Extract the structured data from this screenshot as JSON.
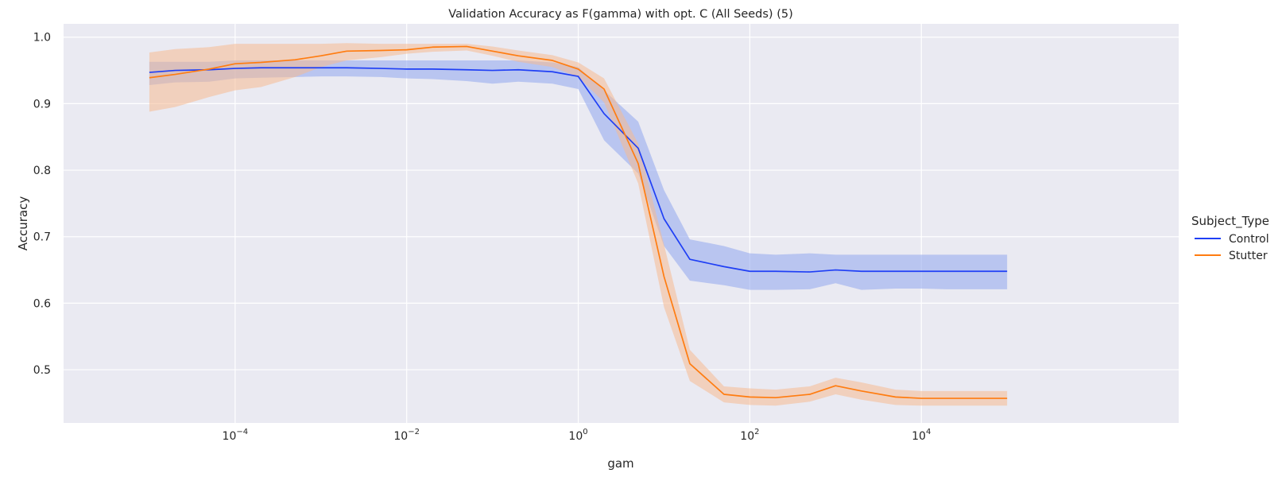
{
  "chart_data": {
    "type": "line",
    "title": "Validation Accuracy as F(gamma) with opt. C (All Seeds) (5)",
    "xlabel": "gam",
    "ylabel": "Accuracy",
    "xscale": "log",
    "xlim": [
      1e-06,
      10000000
    ],
    "ylim": [
      0.42,
      1.02
    ],
    "grid": true,
    "legend": {
      "title": "Subject_Type",
      "placement": "right"
    },
    "x_ticks": [
      {
        "base": "10",
        "exp": "−4",
        "value": 0.0001
      },
      {
        "base": "10",
        "exp": "−2",
        "value": 0.01
      },
      {
        "base": "10",
        "exp": "0",
        "value": 1
      },
      {
        "base": "10",
        "exp": "2",
        "value": 100
      },
      {
        "base": "10",
        "exp": "4",
        "value": 10000
      }
    ],
    "y_ticks": [
      {
        "label": "0.5",
        "value": 0.5
      },
      {
        "label": "0.6",
        "value": 0.6
      },
      {
        "label": "0.7",
        "value": 0.7
      },
      {
        "label": "0.8",
        "value": 0.8
      },
      {
        "label": "0.9",
        "value": 0.9
      },
      {
        "label": "1.0",
        "value": 1.0
      }
    ],
    "x": [
      1e-05,
      2e-05,
      5e-05,
      0.0001,
      0.0002,
      0.0005,
      0.001,
      0.002,
      0.005,
      0.01,
      0.02,
      0.05,
      0.1,
      0.2,
      0.5,
      1,
      2,
      5,
      10,
      20,
      50,
      100,
      200,
      500,
      1000,
      2000,
      5000,
      10000,
      20000,
      50000,
      100000
    ],
    "series": [
      {
        "name": "Control",
        "color": "#1f3ff5",
        "band_color": "#90a6ef",
        "values": [
          0.947,
          0.95,
          0.951,
          0.953,
          0.954,
          0.954,
          0.954,
          0.954,
          0.953,
          0.952,
          0.952,
          0.951,
          0.95,
          0.951,
          0.948,
          0.941,
          0.885,
          0.833,
          0.727,
          0.666,
          0.655,
          0.648,
          0.648,
          0.647,
          0.65,
          0.648,
          0.648,
          0.648,
          0.648,
          0.648,
          0.648
        ],
        "lower": [
          0.928,
          0.932,
          0.933,
          0.938,
          0.939,
          0.94,
          0.941,
          0.941,
          0.94,
          0.938,
          0.937,
          0.934,
          0.93,
          0.933,
          0.93,
          0.922,
          0.845,
          0.795,
          0.686,
          0.634,
          0.627,
          0.62,
          0.62,
          0.621,
          0.63,
          0.62,
          0.622,
          0.622,
          0.621,
          0.621,
          0.621
        ],
        "upper": [
          0.963,
          0.963,
          0.963,
          0.965,
          0.965,
          0.965,
          0.965,
          0.965,
          0.965,
          0.965,
          0.965,
          0.965,
          0.965,
          0.965,
          0.962,
          0.955,
          0.92,
          0.873,
          0.77,
          0.696,
          0.686,
          0.675,
          0.673,
          0.675,
          0.673,
          0.673,
          0.673,
          0.673,
          0.673,
          0.673,
          0.673
        ]
      },
      {
        "name": "Stutter",
        "color": "#ff7c10",
        "band_color": "#f5b992",
        "values": [
          0.939,
          0.944,
          0.952,
          0.96,
          0.962,
          0.966,
          0.972,
          0.979,
          0.98,
          0.981,
          0.985,
          0.986,
          0.979,
          0.972,
          0.965,
          0.952,
          0.922,
          0.81,
          0.64,
          0.509,
          0.463,
          0.459,
          0.458,
          0.463,
          0.476,
          0.468,
          0.459,
          0.457,
          0.457,
          0.457,
          0.457
        ],
        "lower": [
          0.888,
          0.895,
          0.91,
          0.92,
          0.925,
          0.94,
          0.955,
          0.965,
          0.97,
          0.975,
          0.978,
          0.98,
          0.972,
          0.963,
          0.955,
          0.94,
          0.902,
          0.78,
          0.594,
          0.483,
          0.451,
          0.447,
          0.446,
          0.452,
          0.463,
          0.455,
          0.447,
          0.446,
          0.446,
          0.446,
          0.446
        ],
        "upper": [
          0.977,
          0.982,
          0.985,
          0.99,
          0.99,
          0.99,
          0.99,
          0.991,
          0.99,
          0.99,
          0.99,
          0.99,
          0.986,
          0.98,
          0.973,
          0.962,
          0.938,
          0.84,
          0.688,
          0.53,
          0.475,
          0.472,
          0.47,
          0.475,
          0.488,
          0.481,
          0.47,
          0.468,
          0.468,
          0.468,
          0.468
        ]
      }
    ]
  }
}
